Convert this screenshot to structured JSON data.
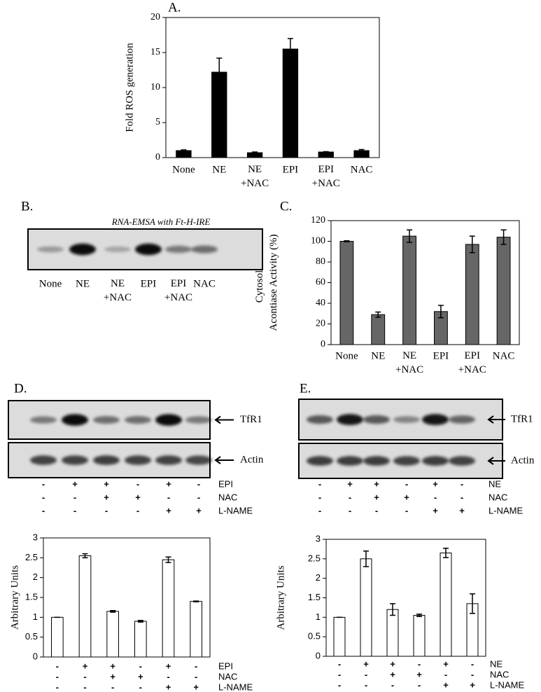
{
  "chart_data": [
    {
      "type": "bar",
      "panel_label": "A.",
      "ylabel": "Fold ROS generation",
      "categories": [
        "None",
        "NE",
        "NE\n+NAC",
        "EPI",
        "EPI\n+NAC",
        "NAC"
      ],
      "values": [
        1.0,
        12.2,
        0.7,
        15.5,
        0.8,
        1.0
      ],
      "errors": [
        0.1,
        2.0,
        0.1,
        1.5,
        0.05,
        0.15
      ],
      "color": "#000000",
      "edge_color": "#000000",
      "ylim": [
        0,
        20
      ],
      "yticks": [
        0,
        5,
        10,
        15,
        20
      ]
    },
    {
      "type": "bar",
      "panel_label": "C.",
      "ylabel": "Cytosolic\nAcontiase Activity (%)",
      "categories": [
        "None",
        "NE",
        "NE\n+NAC",
        "EPI",
        "EPI\n+NAC",
        "NAC"
      ],
      "values": [
        100,
        29,
        105,
        32,
        97,
        104
      ],
      "errors": [
        0.5,
        2.5,
        6,
        6,
        8,
        7
      ],
      "color": "#666666",
      "edge_color": "#000000",
      "ylim": [
        0,
        120
      ],
      "yticks": [
        0,
        20,
        40,
        60,
        80,
        100,
        120
      ]
    },
    {
      "type": "bar",
      "ylabel": "Arbitrary Units",
      "values": [
        1.0,
        2.55,
        1.15,
        0.9,
        2.45,
        1.4
      ],
      "errors": [
        0.0,
        0.05,
        0.02,
        0.02,
        0.07,
        0.01
      ],
      "color": "#ffffff",
      "edge_color": "#000000",
      "ylim": [
        0,
        3
      ],
      "yticks": [
        0,
        0.5,
        1,
        1.5,
        2,
        2.5,
        3
      ],
      "conditions": [
        {
          "name": "EPI",
          "marks": [
            "-",
            "+",
            "+",
            "-",
            "+",
            "-"
          ]
        },
        {
          "name": "NAC",
          "marks": [
            "-",
            "-",
            "+",
            "+",
            "-",
            "-"
          ]
        },
        {
          "name": "L-NAME",
          "marks": [
            "-",
            "-",
            "-",
            "-",
            "+",
            "+"
          ]
        }
      ]
    },
    {
      "type": "bar",
      "ylabel": "Arbitrary Units",
      "values": [
        1.0,
        2.5,
        1.2,
        1.05,
        2.65,
        1.35
      ],
      "errors": [
        0.0,
        0.2,
        0.15,
        0.03,
        0.12,
        0.25
      ],
      "color": "#ffffff",
      "edge_color": "#000000",
      "ylim": [
        0,
        3
      ],
      "yticks": [
        0,
        0.5,
        1,
        1.5,
        2,
        2.5,
        3
      ],
      "conditions": [
        {
          "name": "NE",
          "marks": [
            "-",
            "+",
            "+",
            "-",
            "+",
            "-"
          ]
        },
        {
          "name": "NAC",
          "marks": [
            "-",
            "-",
            "+",
            "+",
            "-",
            "-"
          ]
        },
        {
          "name": "L-NAME",
          "marks": [
            "-",
            "-",
            "-",
            "-",
            "+",
            "+"
          ]
        }
      ]
    }
  ],
  "blots": [
    {
      "panel_label": "B.",
      "caption": "RNA-EMSA with  Ft-H-IRE",
      "lanes": [
        "None",
        "NE",
        "NE\n+NAC",
        "EPI",
        "EPI\n+NAC",
        "NAC"
      ]
    },
    {
      "panel_label": "D.",
      "rows": [
        "TfR1",
        "Actin"
      ],
      "conditions": [
        {
          "name": "EPI",
          "marks": [
            "-",
            "+",
            "+",
            "-",
            "+",
            "-"
          ]
        },
        {
          "name": "NAC",
          "marks": [
            "-",
            "-",
            "+",
            "+",
            "-",
            "-"
          ]
        },
        {
          "name": "L-NAME",
          "marks": [
            "-",
            "-",
            "-",
            "-",
            "+",
            "+"
          ]
        }
      ]
    },
    {
      "panel_label": "E.",
      "rows": [
        "TfR1",
        "Actin"
      ],
      "conditions": [
        {
          "name": "NE",
          "marks": [
            "-",
            "+",
            "+",
            "-",
            "+",
            "-"
          ]
        },
        {
          "name": "NAC",
          "marks": [
            "-",
            "-",
            "+",
            "+",
            "-",
            "-"
          ]
        },
        {
          "name": "L-NAME",
          "marks": [
            "-",
            "-",
            "-",
            "-",
            "+",
            "+"
          ]
        }
      ]
    }
  ]
}
